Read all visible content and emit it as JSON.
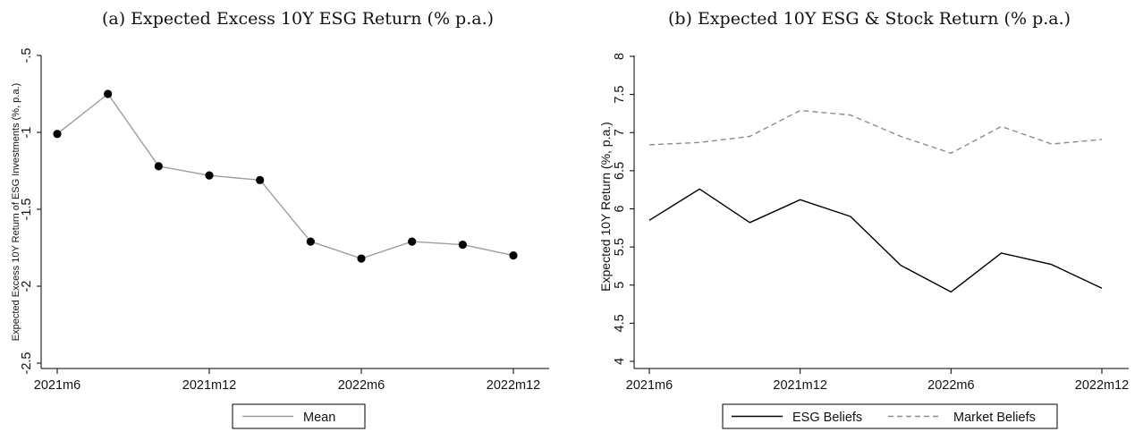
{
  "chart_data": [
    {
      "panel": "a",
      "type": "line",
      "title": "(a)  Expected Excess 10Y ESG Return (% p.a.)",
      "xlabel": "",
      "ylabel": "Expected Excess 10Y Return of ESG Investments (%, p.a.)",
      "x": [
        "2021m6",
        "2021m8",
        "2021m10",
        "2021m12",
        "2022m2",
        "2022m4",
        "2022m6",
        "2022m8",
        "2022m10",
        "2022m12"
      ],
      "x_ticks": [
        "2021m6",
        "2021m12",
        "2022m6",
        "2022m12"
      ],
      "y_ticks": [
        "-2.5",
        "-2",
        "-1.5",
        "-1",
        "-.5"
      ],
      "ylim": [
        -2.5,
        -0.5
      ],
      "grid": false,
      "series": [
        {
          "name": "Mean",
          "values": [
            -1.01,
            -0.75,
            -1.22,
            -1.28,
            -1.31,
            -1.71,
            -1.82,
            -1.71,
            -1.73,
            -1.8
          ],
          "color": "#9e9e9e",
          "markers": true,
          "style": "solid"
        }
      ],
      "legend": [
        "Mean"
      ],
      "legend_position": "bottom"
    },
    {
      "panel": "b",
      "type": "line",
      "title": "(b)  Expected 10Y ESG & Stock Return (% p.a.)",
      "xlabel": "",
      "ylabel": "Expected 10Y Return (%, p.a.)",
      "x": [
        "2021m6",
        "2021m8",
        "2021m10",
        "2021m12",
        "2022m2",
        "2022m4",
        "2022m6",
        "2022m8",
        "2022m10",
        "2022m12"
      ],
      "x_ticks": [
        "2021m6",
        "2021m12",
        "2022m6",
        "2022m12"
      ],
      "y_ticks": [
        "4",
        "4.5",
        "5",
        "5.5",
        "6",
        "6.5",
        "7",
        "7.5",
        "8"
      ],
      "ylim": [
        4,
        8
      ],
      "grid": false,
      "series": [
        {
          "name": "ESG Beliefs",
          "values": [
            5.85,
            6.26,
            5.82,
            6.12,
            5.9,
            5.26,
            4.91,
            5.42,
            5.27,
            4.96
          ],
          "color": "#000000",
          "style": "solid"
        },
        {
          "name": "Market Beliefs",
          "values": [
            6.84,
            6.87,
            6.95,
            7.29,
            7.23,
            6.95,
            6.73,
            7.08,
            6.85,
            6.91
          ],
          "color": "#8c8c8c",
          "style": "dashed"
        }
      ],
      "legend": [
        "ESG Beliefs",
        "Market Beliefs"
      ],
      "legend_position": "bottom"
    }
  ]
}
